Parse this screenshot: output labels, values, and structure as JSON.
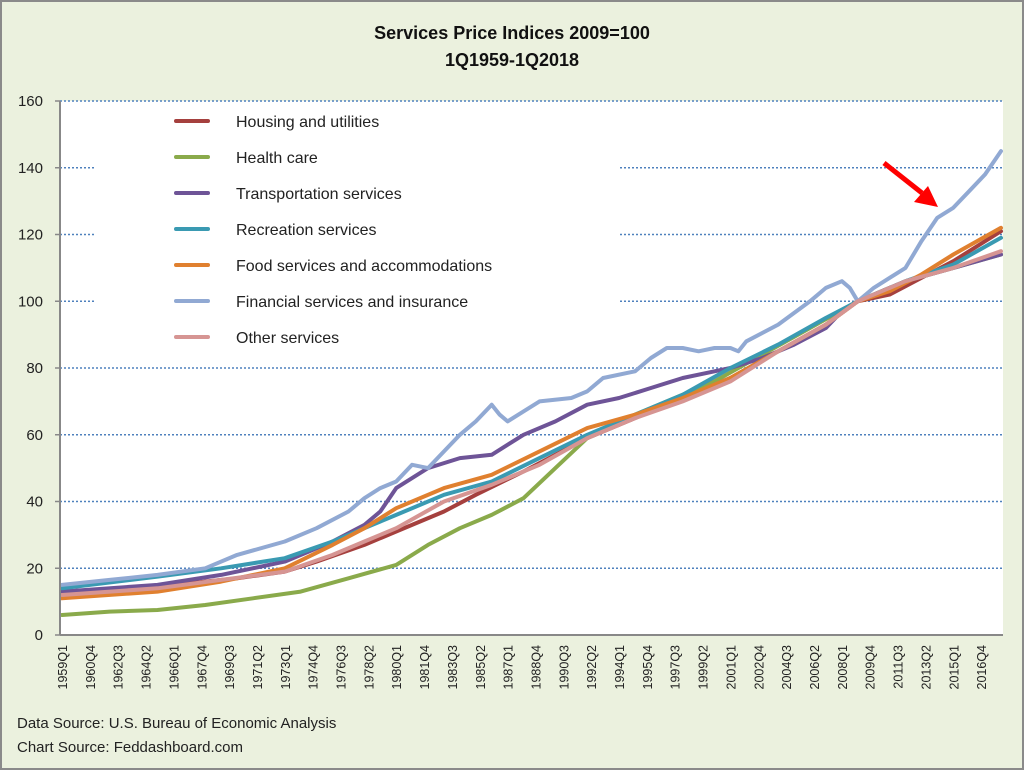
{
  "chart_data": {
    "type": "line",
    "title": "Services Price Indices 2009=100",
    "subtitle": "1Q1959-1Q2018",
    "xlabel": "",
    "ylabel": "",
    "ylim": [
      0,
      160
    ],
    "yticks": [
      0,
      20,
      40,
      60,
      80,
      100,
      120,
      140,
      160
    ],
    "x_first": "1959Q1",
    "x_last": "2018Q1",
    "xticks": [
      "1959Q1",
      "1960Q4",
      "1962Q3",
      "1964Q2",
      "1966Q1",
      "1967Q4",
      "1969Q3",
      "1971Q2",
      "1973Q1",
      "1974Q4",
      "1976Q3",
      "1978Q2",
      "1980Q1",
      "1981Q4",
      "1983Q3",
      "1985Q2",
      "1987Q1",
      "1988Q4",
      "1990Q3",
      "1992Q2",
      "1994Q1",
      "1995Q4",
      "1997Q3",
      "1999Q2",
      "2001Q1",
      "2002Q4",
      "2004Q3",
      "2006Q2",
      "2008Q1",
      "2009Q4",
      "2011Q3",
      "2013Q2",
      "2015Q1",
      "2016Q4"
    ],
    "grid": "horizontal dotted",
    "legend_position": "top-left",
    "series": [
      {
        "name": "Housing and utilities",
        "color": "#A5403E",
        "points": [
          [
            "1959Q1",
            13
          ],
          [
            "1965Q1",
            14.5
          ],
          [
            "1970Q1",
            17
          ],
          [
            "1973Q1",
            19
          ],
          [
            "1975Q1",
            22
          ],
          [
            "1978Q1",
            27
          ],
          [
            "1980Q1",
            31
          ],
          [
            "1983Q1",
            37
          ],
          [
            "1985Q1",
            42
          ],
          [
            "1988Q1",
            49
          ],
          [
            "1990Q1",
            54
          ],
          [
            "1992Q1",
            59
          ],
          [
            "1995Q1",
            65
          ],
          [
            "1998Q1",
            71
          ],
          [
            "2001Q1",
            77
          ],
          [
            "2004Q1",
            85
          ],
          [
            "2007Q1",
            93
          ],
          [
            "2009Q1",
            100
          ],
          [
            "2011Q1",
            102
          ],
          [
            "2013Q1",
            107
          ],
          [
            "2015Q1",
            112
          ],
          [
            "2018Q1",
            121
          ]
        ]
      },
      {
        "name": "Health care",
        "color": "#8AAA4B",
        "points": [
          [
            "1959Q1",
            6
          ],
          [
            "1962Q1",
            7
          ],
          [
            "1965Q1",
            7.5
          ],
          [
            "1968Q1",
            9
          ],
          [
            "1971Q1",
            11
          ],
          [
            "1974Q1",
            13
          ],
          [
            "1977Q1",
            17
          ],
          [
            "1980Q1",
            21
          ],
          [
            "1982Q1",
            27
          ],
          [
            "1984Q1",
            32
          ],
          [
            "1986Q1",
            36
          ],
          [
            "1988Q1",
            41
          ],
          [
            "1990Q1",
            50
          ],
          [
            "1992Q1",
            59
          ],
          [
            "1994Q1",
            64
          ],
          [
            "1997Q1",
            70
          ],
          [
            "2000Q1",
            76
          ],
          [
            "2003Q1",
            84
          ],
          [
            "2006Q1",
            92
          ],
          [
            "2009Q1",
            100
          ],
          [
            "2012Q1",
            106
          ],
          [
            "2015Q1",
            110
          ],
          [
            "2018Q1",
            114
          ]
        ]
      },
      {
        "name": "Transportation services",
        "color": "#6E5497",
        "points": [
          [
            "1959Q1",
            13
          ],
          [
            "1965Q1",
            15
          ],
          [
            "1969Q1",
            18
          ],
          [
            "1973Q1",
            22
          ],
          [
            "1976Q1",
            28
          ],
          [
            "1978Q1",
            33
          ],
          [
            "1979Q1",
            37
          ],
          [
            "1980Q1",
            44
          ],
          [
            "1982Q1",
            50
          ],
          [
            "1984Q1",
            53
          ],
          [
            "1986Q1",
            54
          ],
          [
            "1988Q1",
            60
          ],
          [
            "1990Q1",
            64
          ],
          [
            "1992Q1",
            69
          ],
          [
            "1994Q1",
            71
          ],
          [
            "1996Q1",
            74
          ],
          [
            "1998Q1",
            77
          ],
          [
            "2000Q1",
            79
          ],
          [
            "2001Q1",
            80
          ],
          [
            "2003Q1",
            83
          ],
          [
            "2005Q1",
            87
          ],
          [
            "2007Q1",
            92
          ],
          [
            "2008Q1",
            97
          ],
          [
            "2009Q1",
            100
          ],
          [
            "2012Q1",
            106
          ],
          [
            "2015Q1",
            110
          ],
          [
            "2018Q1",
            114
          ]
        ]
      },
      {
        "name": "Recreation services",
        "color": "#3A9AB2",
        "points": [
          [
            "1959Q1",
            14
          ],
          [
            "1965Q1",
            17.5
          ],
          [
            "1969Q1",
            20
          ],
          [
            "1973Q1",
            23
          ],
          [
            "1976Q1",
            28
          ],
          [
            "1978Q1",
            32
          ],
          [
            "1980Q1",
            36
          ],
          [
            "1983Q1",
            42
          ],
          [
            "1986Q1",
            46
          ],
          [
            "1989Q1",
            53
          ],
          [
            "1992Q1",
            60
          ],
          [
            "1995Q1",
            66
          ],
          [
            "1998Q1",
            72
          ],
          [
            "2001Q1",
            80
          ],
          [
            "2004Q1",
            87
          ],
          [
            "2007Q1",
            95
          ],
          [
            "2009Q1",
            100
          ],
          [
            "2012Q1",
            106
          ],
          [
            "2015Q1",
            111
          ],
          [
            "2018Q1",
            119
          ]
        ]
      },
      {
        "name": "Food services and accommodations",
        "color": "#E0802F",
        "points": [
          [
            "1959Q1",
            11
          ],
          [
            "1965Q1",
            13
          ],
          [
            "1969Q1",
            16
          ],
          [
            "1973Q1",
            20
          ],
          [
            "1976Q1",
            27
          ],
          [
            "1978Q1",
            32
          ],
          [
            "1980Q1",
            38
          ],
          [
            "1983Q1",
            44
          ],
          [
            "1986Q1",
            48
          ],
          [
            "1989Q1",
            55
          ],
          [
            "1992Q1",
            62
          ],
          [
            "1995Q1",
            66
          ],
          [
            "1998Q1",
            71
          ],
          [
            "2001Q1",
            77
          ],
          [
            "2004Q1",
            85
          ],
          [
            "2007Q1",
            93
          ],
          [
            "2009Q1",
            100
          ],
          [
            "2011Q1",
            103
          ],
          [
            "2013Q1",
            108
          ],
          [
            "2015Q1",
            114
          ],
          [
            "2018Q1",
            122
          ]
        ]
      },
      {
        "name": "Financial services and insurance",
        "color": "#91A9D3",
        "points": [
          [
            "1959Q1",
            15
          ],
          [
            "1962Q1",
            16.5
          ],
          [
            "1965Q1",
            18
          ],
          [
            "1968Q1",
            20
          ],
          [
            "1970Q1",
            24
          ],
          [
            "1973Q1",
            28
          ],
          [
            "1975Q1",
            32
          ],
          [
            "1977Q1",
            37
          ],
          [
            "1978Q1",
            41
          ],
          [
            "1979Q1",
            44
          ],
          [
            "1980Q1",
            46
          ],
          [
            "1981Q1",
            51
          ],
          [
            "1982Q1",
            50
          ],
          [
            "1983Q1",
            55
          ],
          [
            "1984Q1",
            60
          ],
          [
            "1985Q1",
            64
          ],
          [
            "1986Q1",
            69
          ],
          [
            "1986Q3",
            66
          ],
          [
            "1987Q1",
            64
          ],
          [
            "1988Q1",
            67
          ],
          [
            "1989Q1",
            70
          ],
          [
            "1991Q1",
            71
          ],
          [
            "1992Q1",
            73
          ],
          [
            "1993Q1",
            77
          ],
          [
            "1995Q1",
            79
          ],
          [
            "1996Q1",
            83
          ],
          [
            "1997Q1",
            86
          ],
          [
            "1998Q1",
            86
          ],
          [
            "1999Q1",
            85
          ],
          [
            "2000Q1",
            86
          ],
          [
            "2001Q1",
            86
          ],
          [
            "2001Q3",
            85
          ],
          [
            "2002Q1",
            88
          ],
          [
            "2004Q1",
            93
          ],
          [
            "2006Q1",
            100
          ],
          [
            "2007Q1",
            104
          ],
          [
            "2008Q1",
            106
          ],
          [
            "2008Q3",
            104
          ],
          [
            "2009Q1",
            100
          ],
          [
            "2010Q1",
            104
          ],
          [
            "2012Q1",
            110
          ],
          [
            "2013Q1",
            118
          ],
          [
            "2014Q1",
            125
          ],
          [
            "2015Q1",
            128
          ],
          [
            "2016Q1",
            133
          ],
          [
            "2017Q1",
            138
          ],
          [
            "2018Q1",
            145
          ]
        ]
      },
      {
        "name": "Other services",
        "color": "#D69593",
        "points": [
          [
            "1959Q1",
            12
          ],
          [
            "1965Q1",
            14
          ],
          [
            "1969Q1",
            16.5
          ],
          [
            "1973Q1",
            19
          ],
          [
            "1976Q1",
            24
          ],
          [
            "1978Q1",
            28
          ],
          [
            "1980Q1",
            32
          ],
          [
            "1983Q1",
            40
          ],
          [
            "1986Q1",
            45
          ],
          [
            "1989Q1",
            51
          ],
          [
            "1992Q1",
            59
          ],
          [
            "1995Q1",
            65
          ],
          [
            "1998Q1",
            70
          ],
          [
            "2001Q1",
            76
          ],
          [
            "2004Q1",
            85
          ],
          [
            "2007Q1",
            93
          ],
          [
            "2009Q1",
            100
          ],
          [
            "2012Q1",
            106
          ],
          [
            "2015Q1",
            110
          ],
          [
            "2018Q1",
            115
          ]
        ]
      }
    ],
    "annotation": {
      "type": "arrow",
      "color": "#FF0000",
      "points_to": "Financial services and insurance"
    }
  },
  "footer": {
    "data_source": "Data Source: U.S. Bureau of Economic Analysis",
    "chart_source": "Chart Source: Feddashboard.com"
  }
}
